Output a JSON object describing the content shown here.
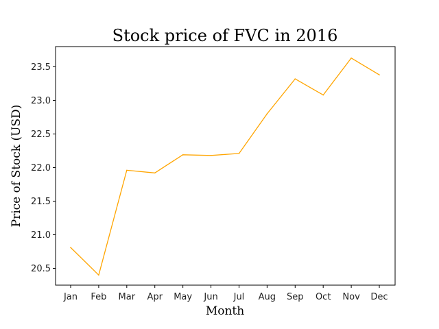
{
  "chart_data": {
    "type": "line",
    "title": "Stock price of FVC in 2016",
    "xlabel": "Month",
    "ylabel": "Price of Stock (USD)",
    "categories": [
      "Jan",
      "Feb",
      "Mar",
      "Apr",
      "May",
      "Jun",
      "Jul",
      "Aug",
      "Sep",
      "Oct",
      "Nov",
      "Dec"
    ],
    "series": [
      {
        "values": [
          20.81,
          20.4,
          21.96,
          21.92,
          22.19,
          22.18,
          22.21,
          22.8,
          23.32,
          23.08,
          23.63,
          23.38
        ],
        "color": "#FFA500"
      }
    ],
    "ylim": [
      20.25,
      23.8
    ],
    "yticks": [
      "20.5",
      "21.0",
      "21.5",
      "22.0",
      "22.5",
      "23.0",
      "23.5"
    ],
    "grid": false,
    "legend": "none"
  }
}
